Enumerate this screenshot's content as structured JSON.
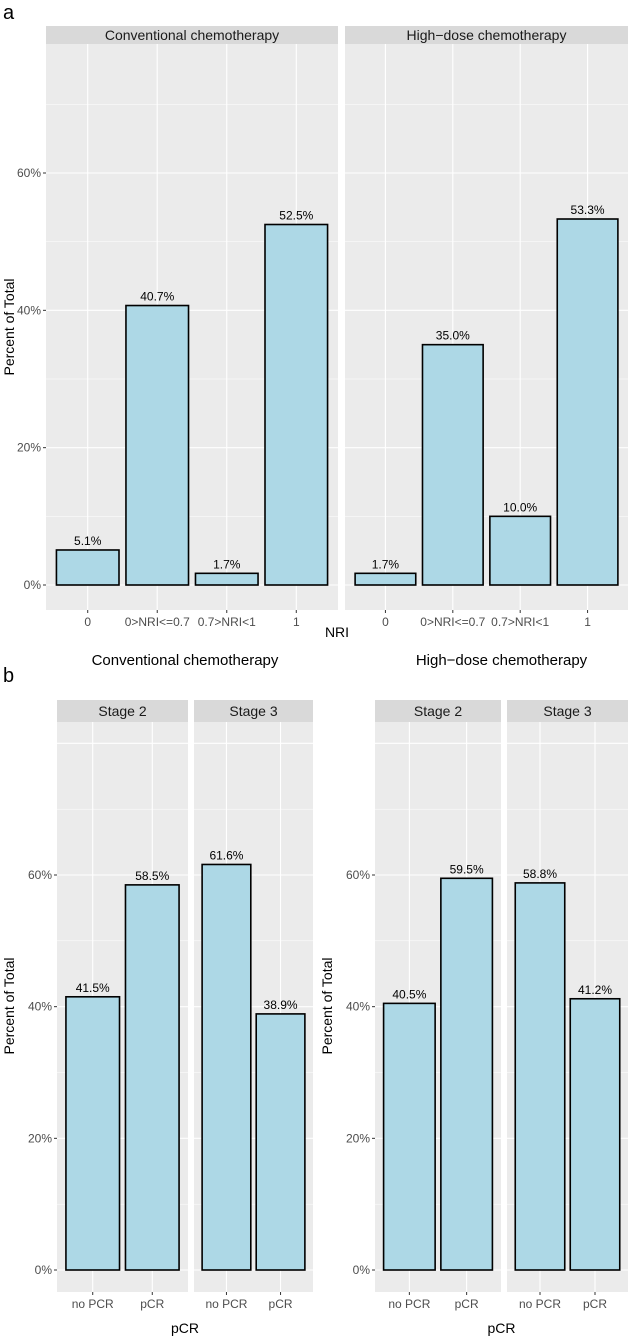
{
  "colors": {
    "panel_bg": "#ebebeb",
    "strip_bg": "#d9d9d9",
    "grid": "#ffffff",
    "bar_fill": "#add8e6",
    "bar_stroke": "#000000"
  },
  "chart_data": [
    {
      "type": "bar",
      "panel_letter": "a",
      "xlabel": "NRI",
      "ylabel": "Percent of Total",
      "ylim": [
        -3.6,
        78.8
      ],
      "yticks": [
        0,
        20,
        40,
        60
      ],
      "ytick_labels": [
        "0%",
        "20%",
        "40%",
        "60%"
      ],
      "grid": true,
      "categories": [
        "0",
        "0>NRI<=0.7",
        "0.7>NRI<1",
        "1"
      ],
      "facets": [
        {
          "strip": "Conventional chemotherapy",
          "values": [
            5.1,
            40.7,
            1.7,
            52.5
          ],
          "labels": [
            "5.1%",
            "40.7%",
            "1.7%",
            "52.5%"
          ]
        },
        {
          "strip": "High−dose chemotherapy",
          "values": [
            1.7,
            35.0,
            10.0,
            53.3
          ],
          "labels": [
            "1.7%",
            "35.0%",
            "10.0%",
            "53.3%"
          ]
        }
      ]
    },
    {
      "type": "bar",
      "panel_letter": "b",
      "xlabel": "pCR",
      "ylabel": "Percent of Total",
      "ylim": [
        -3.3,
        83.2
      ],
      "yticks": [
        0,
        20,
        40,
        60
      ],
      "ytick_labels": [
        "0%",
        "20%",
        "40%",
        "60%"
      ],
      "grid": true,
      "categories": [
        "no PCR",
        "pCR"
      ],
      "groups": [
        {
          "title": "Conventional chemotherapy",
          "facets": [
            {
              "strip": "Stage 2",
              "values": [
                41.5,
                58.5
              ],
              "labels": [
                "41.5%",
                "58.5%"
              ]
            },
            {
              "strip": "Stage 3",
              "values": [
                61.6,
                38.9
              ],
              "labels": [
                "61.6%",
                "38.9%"
              ]
            }
          ]
        },
        {
          "title": "High−dose chemotherapy",
          "facets": [
            {
              "strip": "Stage 2",
              "values": [
                40.5,
                59.5
              ],
              "labels": [
                "40.5%",
                "59.5%"
              ]
            },
            {
              "strip": "Stage 3",
              "values": [
                58.8,
                41.2
              ],
              "labels": [
                "58.8%",
                "41.2%"
              ]
            }
          ]
        }
      ]
    }
  ]
}
